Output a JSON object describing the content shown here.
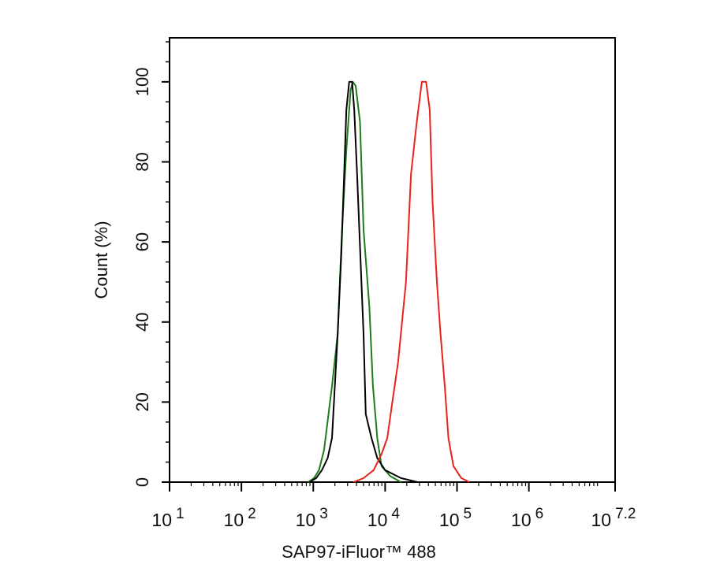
{
  "chart_data": {
    "type": "line",
    "title": "",
    "xlabel": "SAP97-iFluor™ 488",
    "ylabel": "Count  (%)",
    "x_scale": "log10",
    "xlim_log10": [
      1,
      7.2
    ],
    "ylim": [
      0,
      111
    ],
    "grid": false,
    "legend": "none",
    "x_ticks": [
      {
        "base": "10",
        "exp": "1",
        "log10": 1
      },
      {
        "base": "10",
        "exp": "2",
        "log10": 2
      },
      {
        "base": "10",
        "exp": "3",
        "log10": 3
      },
      {
        "base": "10",
        "exp": "4",
        "log10": 4
      },
      {
        "base": "10",
        "exp": "5",
        "log10": 5
      },
      {
        "base": "10",
        "exp": "6",
        "log10": 6
      },
      {
        "base": "10",
        "exp": "7.2",
        "log10": 7.2
      }
    ],
    "y_ticks": [
      "0",
      "20",
      "40",
      "60",
      "80",
      "100"
    ],
    "series": [
      {
        "color": "#1b7d1b",
        "points_log10x_y": [
          [
            2.93,
            0
          ],
          [
            3.01,
            1
          ],
          [
            3.08,
            3
          ],
          [
            3.15,
            8
          ],
          [
            3.26,
            24
          ],
          [
            3.34,
            37
          ],
          [
            3.4,
            63
          ],
          [
            3.46,
            83
          ],
          [
            3.52,
            98
          ],
          [
            3.55,
            100
          ],
          [
            3.59,
            99
          ],
          [
            3.65,
            90
          ],
          [
            3.7,
            63
          ],
          [
            3.78,
            44
          ],
          [
            3.83,
            24
          ],
          [
            3.89,
            11
          ],
          [
            3.95,
            4
          ],
          [
            4.07,
            1.5
          ],
          [
            4.22,
            0
          ]
        ]
      },
      {
        "color": "#000000",
        "points_log10x_y": [
          [
            2.95,
            0
          ],
          [
            3.04,
            1
          ],
          [
            3.12,
            3
          ],
          [
            3.2,
            6
          ],
          [
            3.26,
            11
          ],
          [
            3.34,
            37
          ],
          [
            3.39,
            57
          ],
          [
            3.43,
            77
          ],
          [
            3.46,
            93
          ],
          [
            3.5,
            100
          ],
          [
            3.54,
            100
          ],
          [
            3.57,
            93
          ],
          [
            3.61,
            77
          ],
          [
            3.67,
            50
          ],
          [
            3.7,
            37
          ],
          [
            3.73,
            17
          ],
          [
            3.81,
            11
          ],
          [
            3.89,
            6
          ],
          [
            4.0,
            3
          ],
          [
            4.22,
            1
          ],
          [
            4.45,
            0
          ]
        ]
      },
      {
        "color": "#e8231c",
        "points_log10x_y": [
          [
            3.56,
            0
          ],
          [
            3.7,
            1
          ],
          [
            3.84,
            3
          ],
          [
            3.95,
            7
          ],
          [
            4.03,
            11
          ],
          [
            4.1,
            20
          ],
          [
            4.18,
            30
          ],
          [
            4.29,
            50
          ],
          [
            4.36,
            77
          ],
          [
            4.44,
            90
          ],
          [
            4.51,
            100
          ],
          [
            4.57,
            100
          ],
          [
            4.62,
            93
          ],
          [
            4.66,
            70
          ],
          [
            4.72,
            50
          ],
          [
            4.77,
            37
          ],
          [
            4.83,
            24
          ],
          [
            4.88,
            11
          ],
          [
            4.95,
            4
          ],
          [
            5.06,
            1
          ],
          [
            5.17,
            0
          ]
        ]
      }
    ]
  }
}
